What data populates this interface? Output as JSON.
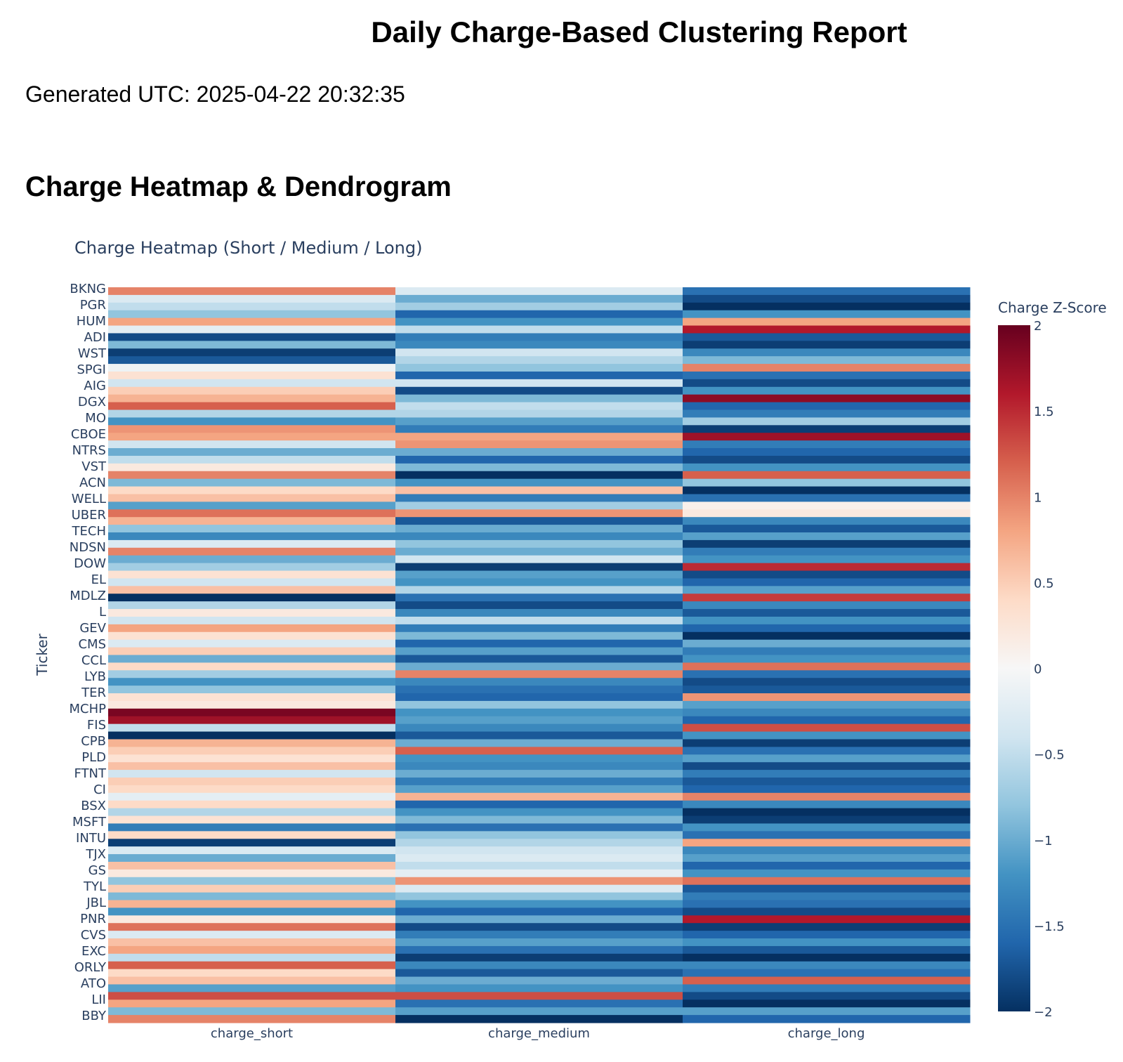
{
  "report": {
    "title": "Daily Charge-Based Clustering Report",
    "generated": "Generated UTC: 2025-04-22 20:32:35",
    "section_title": "Charge Heatmap & Dendrogram"
  },
  "chart_data": {
    "type": "heatmap",
    "title": "Charge Heatmap (Short / Medium / Long)",
    "ylabel": "Ticker",
    "xlabel": "",
    "x_categories": [
      "charge_short",
      "charge_medium",
      "charge_long"
    ],
    "colorbar": {
      "title": "Charge Z-Score",
      "range": [
        -2,
        2
      ],
      "ticks": [
        -2,
        -1.5,
        -1,
        -0.5,
        0,
        0.5,
        1,
        1.5,
        2
      ],
      "tick_labels": [
        "−2",
        "−1.5",
        "−1",
        "−0.5",
        "0",
        "0.5",
        "1",
        "1.5",
        "2"
      ],
      "colorscale": [
        "#053061",
        "#2166ac",
        "#4393c3",
        "#92c5de",
        "#d1e5f0",
        "#f7f7f7",
        "#fddbc7",
        "#f4a582",
        "#d6604d",
        "#b2182b",
        "#67001f"
      ]
    },
    "visible_tick_labels": [
      "BKNG",
      "PGR",
      "HUM",
      "ADI",
      "WST",
      "SPGI",
      "AIG",
      "DGX",
      "MO",
      "CBOE",
      "NTRS",
      "VST",
      "ACN",
      "WELL",
      "UBER",
      "TECH",
      "NDSN",
      "DOW",
      "EL",
      "MDLZ",
      "L",
      "GEV",
      "CMS",
      "CCL",
      "LYB",
      "TER",
      "MCHP",
      "FIS",
      "CPB",
      "PLD",
      "FTNT",
      "CI",
      "BSX",
      "MSFT",
      "INTU",
      "TJX",
      "GS",
      "TYL",
      "JBL",
      "PNR",
      "CVS",
      "EXC",
      "ORLY",
      "ATO",
      "LII",
      "BBY"
    ],
    "band_profile": {
      "charge_short": [
        1.0,
        -0.3,
        -0.5,
        -0.8,
        0.8,
        -0.2,
        -1.8,
        -0.9,
        -1.9,
        -1.7,
        -0.1,
        0.3,
        -0.4,
        0.5,
        0.7,
        1.2,
        -0.6,
        -1.2,
        0.9,
        0.8,
        -0.4,
        -1.0,
        -0.5,
        0.2,
        1.0,
        -0.9,
        0.4,
        0.6,
        -1.1,
        1.1,
        0.7,
        -0.8,
        -1.3,
        -0.3,
        1.0,
        -1.0,
        -0.7,
        0.3,
        -0.4,
        0.6,
        -2.0,
        -0.6,
        0.2,
        -0.4,
        0.8,
        0.3,
        -0.3,
        0.5,
        -1.0,
        0.4,
        -0.7,
        -1.2,
        -0.8,
        0.3,
        0.2,
        1.9,
        1.7,
        -0.5,
        -2.0,
        0.7,
        0.5,
        0.3,
        0.6,
        -0.4,
        0.5,
        0.4,
        -0.2,
        0.4,
        -0.6,
        0.3,
        -1.4,
        0.4,
        -1.9,
        -0.3,
        -1.0,
        0.6,
        0.2,
        -0.8,
        0.5,
        -0.9,
        0.7,
        -1.2,
        0.2,
        1.1,
        -0.3,
        0.6,
        0.8,
        -0.5,
        1.2,
        0.4,
        0.6,
        -1.1,
        1.3,
        0.8,
        -0.9,
        1.0
      ],
      "charge_medium": [
        -0.3,
        -1.0,
        -0.7,
        -1.6,
        -1.2,
        -0.5,
        -1.4,
        -1.3,
        -0.4,
        -0.6,
        -0.8,
        -1.6,
        -0.4,
        -1.8,
        -0.9,
        -0.5,
        -0.6,
        -1.1,
        -1.4,
        0.8,
        0.9,
        -1.0,
        -1.6,
        -0.9,
        -2.0,
        -1.2,
        0.6,
        -1.4,
        -0.7,
        0.9,
        -1.7,
        -1.0,
        -1.3,
        -0.8,
        -1.0,
        -0.4,
        -1.9,
        -1.1,
        -1.2,
        -0.6,
        -1.5,
        -1.8,
        -1.3,
        -0.5,
        -1.4,
        -0.9,
        -1.6,
        -1.1,
        -1.7,
        -1.0,
        1.0,
        -1.3,
        -1.5,
        -1.6,
        -0.8,
        -1.2,
        -1.1,
        -1.3,
        -1.7,
        -1.0,
        1.2,
        -1.2,
        -1.3,
        -1.0,
        -1.4,
        -1.1,
        0.7,
        -1.6,
        -1.2,
        -0.9,
        -1.5,
        -0.8,
        -0.6,
        -0.4,
        -0.3,
        -0.5,
        -0.2,
        0.9,
        -0.3,
        -0.8,
        -1.2,
        -1.6,
        -1.0,
        -1.8,
        -1.4,
        -1.1,
        -1.5,
        -1.9,
        -1.3,
        -1.7,
        -1.0,
        -1.2,
        1.3,
        -1.5,
        -1.1,
        -2.0
      ],
      "charge_long": [
        -1.5,
        -1.8,
        -2.0,
        -1.2,
        0.8,
        1.6,
        -1.7,
        -1.9,
        -1.3,
        -0.9,
        1.0,
        -1.5,
        -1.8,
        -1.2,
        1.8,
        -1.6,
        -1.4,
        -0.7,
        -1.9,
        1.7,
        -1.4,
        -1.6,
        -1.8,
        -1.2,
        1.2,
        -0.8,
        -2.0,
        -1.5,
        0.1,
        0.2,
        -1.3,
        -1.7,
        -1.1,
        -1.9,
        -1.4,
        -1.2,
        1.5,
        -1.8,
        -1.6,
        -1.1,
        1.4,
        -1.3,
        -1.7,
        -1.2,
        -1.6,
        -2.0,
        -1.0,
        -1.4,
        -1.2,
        1.1,
        -1.5,
        -1.8,
        -1.7,
        0.9,
        -1.1,
        -1.3,
        -1.6,
        1.3,
        -1.2,
        -1.9,
        -1.5,
        -1.1,
        -1.8,
        -1.4,
        -1.7,
        -1.6,
        1.0,
        -1.3,
        -2.0,
        -1.9,
        -1.2,
        -1.5,
        0.8,
        -1.3,
        -1.1,
        -1.6,
        -1.2,
        1.1,
        -1.7,
        -1.4,
        -1.5,
        -1.8,
        1.6,
        -1.9,
        -1.6,
        -1.2,
        -1.7,
        -2.0,
        -1.3,
        -1.5,
        1.2,
        -1.4,
        -1.8,
        -2.0,
        -1.1,
        -1.6
      ]
    }
  }
}
